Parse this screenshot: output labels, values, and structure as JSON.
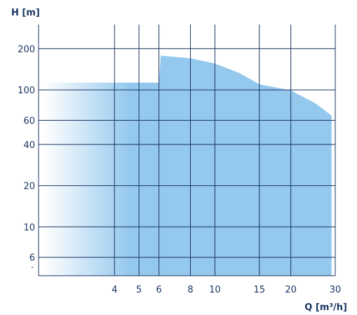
{
  "chart_data": {
    "type": "area",
    "title": "",
    "xlabel": "Q [m³/h]",
    "ylabel": "H [m]",
    "x_scale": "log",
    "y_scale": "log",
    "xlim": [
      2,
      30
    ],
    "ylim": [
      4.4,
      300
    ],
    "x_ticks": [
      4,
      5,
      6,
      8,
      10,
      15,
      20,
      30
    ],
    "x_tick_labels": [
      "4",
      "5",
      "6",
      "8",
      "10",
      "15",
      "20",
      "30"
    ],
    "y_ticks": [
      6,
      10,
      20,
      40,
      60,
      100,
      200
    ],
    "y_tick_labels": [
      "6",
      "10",
      "20",
      "40",
      "60",
      "100",
      "200"
    ],
    "y_minor_tick_label": "·",
    "grid": true,
    "legend": "none",
    "colors": {
      "area_fill": "#94c8ed",
      "area_fade_start": "#ffffff",
      "grid_line": "#1b3562",
      "text": "#1b3562"
    },
    "series": [
      {
        "values": [
          {
            "x": 2.1,
            "y": 113
          },
          {
            "x": 6.0,
            "y": 113
          },
          {
            "x": 6.1,
            "y": 178
          },
          {
            "x": 8.0,
            "y": 170
          },
          {
            "x": 10.0,
            "y": 156
          },
          {
            "x": 12.5,
            "y": 133
          },
          {
            "x": 15.0,
            "y": 110
          },
          {
            "x": 20.0,
            "y": 99
          },
          {
            "x": 25.0,
            "y": 80
          },
          {
            "x": 29.0,
            "y": 65
          }
        ],
        "baseline": 4.4
      }
    ]
  }
}
